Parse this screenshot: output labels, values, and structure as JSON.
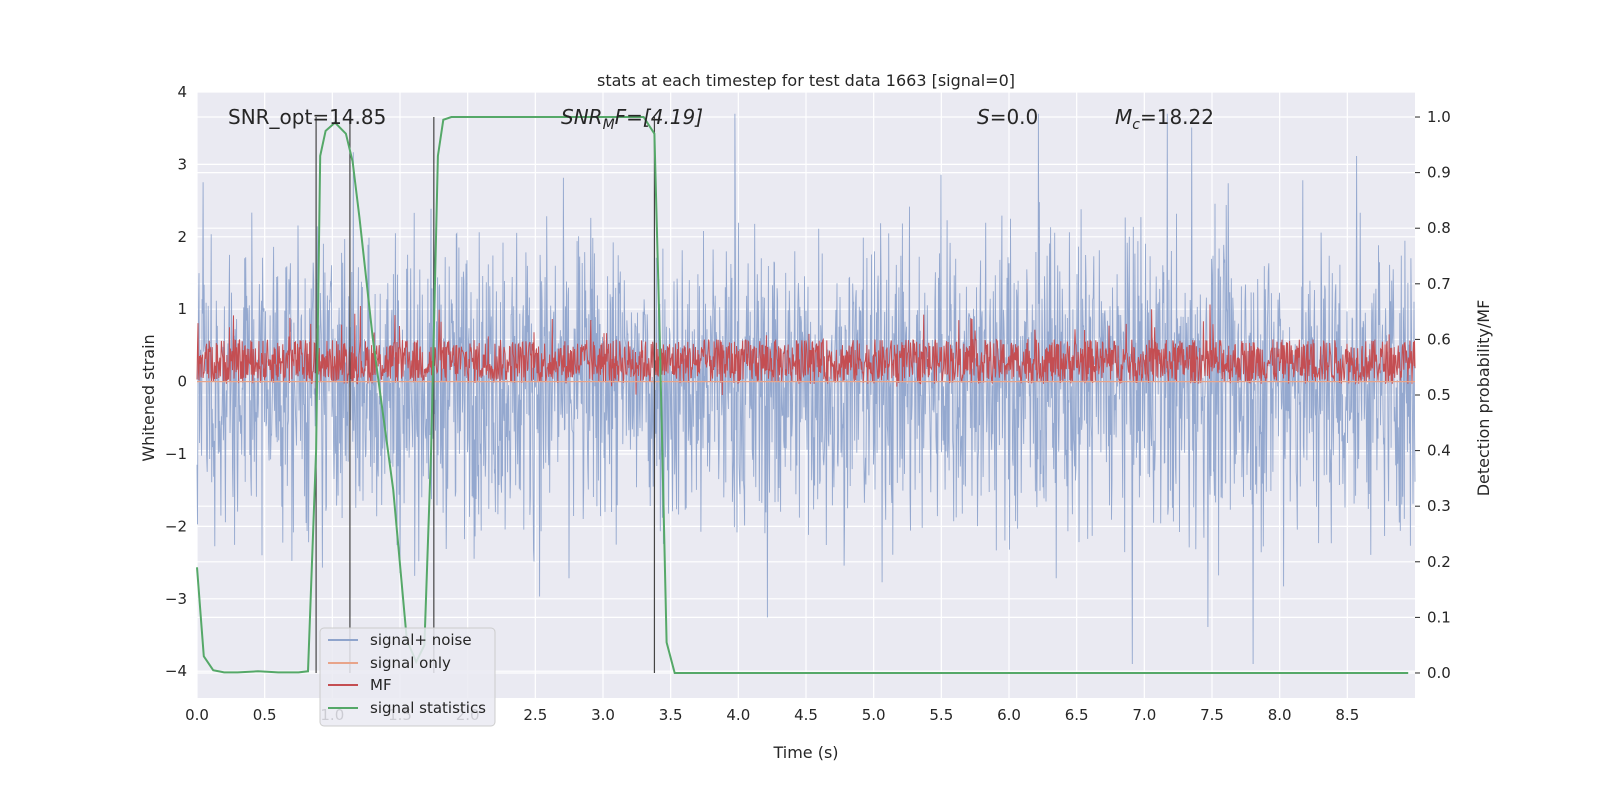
{
  "chart_data": {
    "type": "line",
    "title": "stats at each timestep for test data 1663 [signal=0]",
    "xlabel": "Time (s)",
    "ylabel_left": "Whitened strain",
    "ylabel_right": "Detection probability/MF",
    "xlim": [
      0.0,
      9.0
    ],
    "ylim_left": [
      -4.37,
      4.0
    ],
    "ylim_right": [
      -0.045,
      1.045
    ],
    "x_ticks": [
      "0.0",
      "0.5",
      "1.0",
      "1.5",
      "2.0",
      "2.5",
      "3.0",
      "3.5",
      "4.0",
      "4.5",
      "5.0",
      "5.5",
      "6.0",
      "6.5",
      "7.0",
      "7.5",
      "8.0",
      "8.5"
    ],
    "y_left_ticks": [
      "4",
      "3",
      "2",
      "1",
      "0",
      "−1",
      "−2",
      "−3",
      "−4"
    ],
    "y_right_ticks": [
      "1.0",
      "0.9",
      "0.8",
      "0.7",
      "0.6",
      "0.5",
      "0.4",
      "0.3",
      "0.2",
      "0.1",
      "0.0"
    ],
    "annotations": {
      "snr_opt": "SNR_opt=14.85",
      "snr_mf_label": "SNR",
      "snr_mf_sub": "M",
      "snr_mf_rest": "F=[4.19]",
      "s_label": "S",
      "s_value": "=0.0",
      "mc_label": "M",
      "mc_sub": "c",
      "mc_value": "=18.22"
    },
    "series": [
      {
        "name": "signal+ noise",
        "color": "#8fa4cc",
        "description": "whitened noise, approx. gaussian band between -2.5 and 3.5"
      },
      {
        "name": "signal only",
        "color": "#e8a48a",
        "values_note": "approximately 0 across the record"
      },
      {
        "name": "MF",
        "color": "#c44e52",
        "description": "matched-filter output between 0.5 and 0.65 (right axis)"
      },
      {
        "name": "signal statistics",
        "color": "#55a868",
        "x": [
          0.0,
          0.05,
          0.12,
          0.2,
          0.3,
          0.45,
          0.6,
          0.75,
          0.82,
          0.88,
          0.91,
          0.95,
          1.02,
          1.1,
          1.15,
          1.2,
          1.3,
          1.45,
          1.55,
          1.62,
          1.68,
          1.73,
          1.78,
          1.82,
          1.88,
          2.0,
          2.5,
          3.0,
          3.3,
          3.38,
          3.42,
          3.47,
          3.53,
          4.0,
          5.0,
          6.0,
          7.0,
          8.0,
          8.95
        ],
        "y": [
          0.19,
          0.03,
          0.005,
          0.001,
          0.001,
          0.003,
          0.001,
          0.001,
          0.003,
          0.4,
          0.93,
          0.975,
          0.99,
          0.97,
          0.92,
          0.82,
          0.6,
          0.33,
          0.06,
          0.02,
          0.05,
          0.4,
          0.93,
          0.995,
          1.0,
          1.0,
          1.0,
          1.0,
          1.0,
          0.97,
          0.6,
          0.055,
          0.0,
          0.0,
          0.0,
          0.0,
          0.0,
          0.0,
          0.0
        ]
      }
    ],
    "vertical_markers_x": [
      0.88,
      1.13,
      1.75,
      3.38
    ],
    "legend_location": "lower-left"
  }
}
